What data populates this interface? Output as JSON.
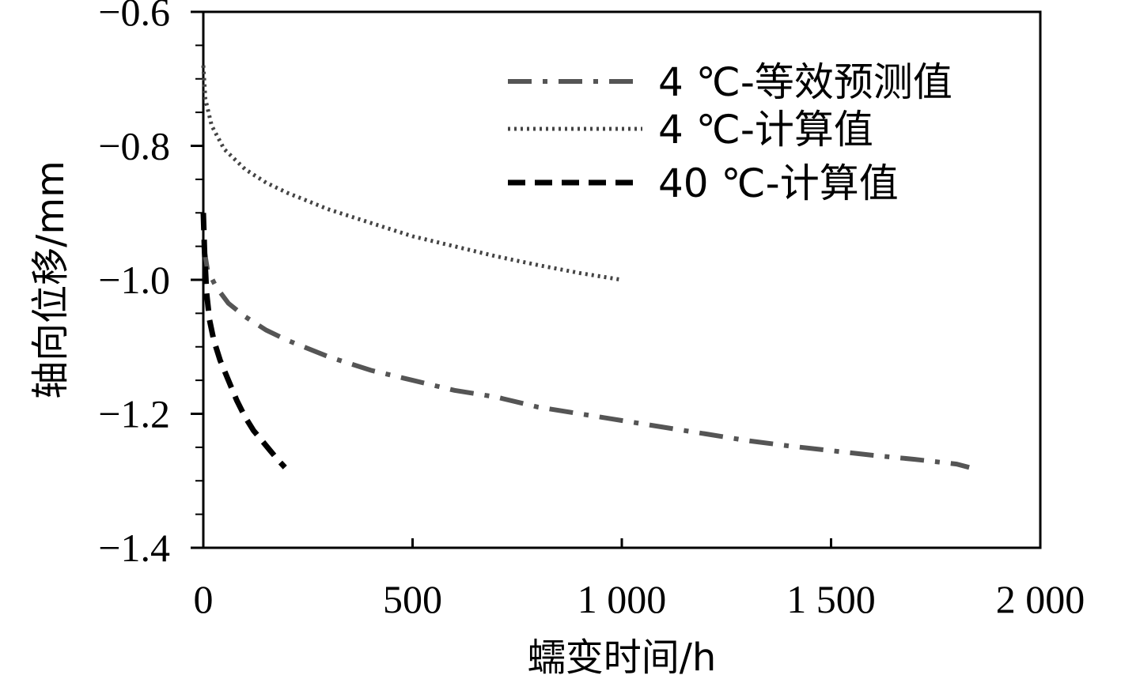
{
  "chart_data": {
    "type": "line",
    "xlabel": "蠕变时间/h",
    "ylabel": "轴向位移/mm",
    "xlim": [
      0,
      2000
    ],
    "ylim": [
      -1.4,
      -0.6
    ],
    "x_ticks": [
      {
        "value": 0,
        "label": "0"
      },
      {
        "value": 500,
        "label": "500"
      },
      {
        "value": 1000,
        "label": "1 000"
      },
      {
        "value": 1500,
        "label": "1 500"
      },
      {
        "value": 2000,
        "label": "2 000"
      }
    ],
    "y_ticks": [
      {
        "value": -0.6,
        "label": "−0.6"
      },
      {
        "value": -0.8,
        "label": "−0.8"
      },
      {
        "value": -1.0,
        "label": "−1.0"
      },
      {
        "value": -1.2,
        "label": "−1.2"
      },
      {
        "value": -1.4,
        "label": "−1.4"
      }
    ],
    "grid": false,
    "legend_position": "top-right",
    "series": [
      {
        "name": "4 ℃-等效预测值",
        "style": "dashdot",
        "color": "#555555",
        "x": [
          1,
          10,
          30,
          60,
          100,
          150,
          200,
          300,
          400,
          500,
          600,
          700,
          800,
          900,
          1000,
          1100,
          1200,
          1300,
          1400,
          1500,
          1600,
          1700,
          1800,
          1830
        ],
        "y": [
          -0.95,
          -0.985,
          -1.01,
          -1.035,
          -1.055,
          -1.075,
          -1.09,
          -1.115,
          -1.135,
          -1.15,
          -1.165,
          -1.175,
          -1.19,
          -1.2,
          -1.21,
          -1.22,
          -1.23,
          -1.24,
          -1.248,
          -1.255,
          -1.262,
          -1.268,
          -1.275,
          -1.28
        ]
      },
      {
        "name": "4 ℃-计算值",
        "style": "dotted",
        "color": "#444444",
        "x": [
          0,
          5,
          20,
          50,
          100,
          150,
          200,
          300,
          400,
          500,
          600,
          700,
          800,
          900,
          1000
        ],
        "y": [
          -0.68,
          -0.73,
          -0.77,
          -0.805,
          -0.835,
          -0.855,
          -0.87,
          -0.895,
          -0.915,
          -0.935,
          -0.95,
          -0.965,
          -0.978,
          -0.99,
          -1.0
        ]
      },
      {
        "name": "40 ℃-计算值",
        "style": "dashed",
        "color": "#000000",
        "x": [
          0,
          3,
          8,
          15,
          25,
          40,
          60,
          80,
          100,
          120,
          140,
          160,
          180,
          195
        ],
        "y": [
          -0.9,
          -0.96,
          -1.02,
          -1.06,
          -1.09,
          -1.12,
          -1.15,
          -1.18,
          -1.205,
          -1.225,
          -1.24,
          -1.255,
          -1.27,
          -1.28
        ]
      }
    ]
  }
}
